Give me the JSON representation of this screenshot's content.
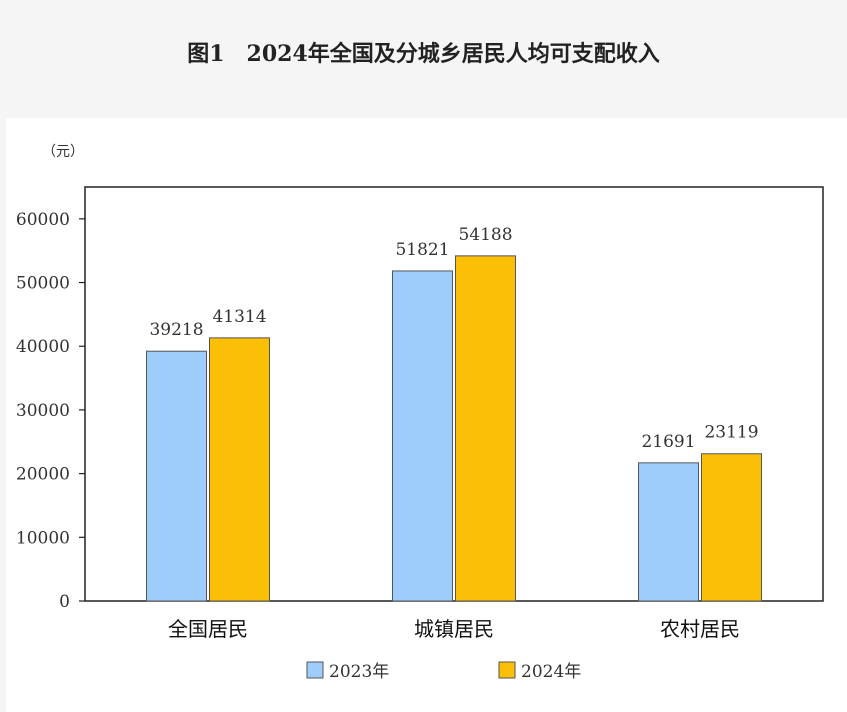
{
  "title": "图1　2024年全国及分城乡居民人均可支配收入",
  "chart_data": {
    "type": "bar",
    "unit_label": "（元）",
    "categories": [
      "全国居民",
      "城镇居民",
      "农村居民"
    ],
    "series": [
      {
        "name": "2023年",
        "values": [
          39218,
          51821,
          21691
        ],
        "color": "#9fcdfb"
      },
      {
        "name": "2024年",
        "values": [
          41314,
          54188,
          23119
        ],
        "color": "#fbbf06"
      }
    ],
    "ylim": [
      0,
      65000
    ],
    "yticks": [
      0,
      10000,
      20000,
      30000,
      40000,
      50000,
      60000
    ],
    "legend_position": "bottom",
    "grid": false
  }
}
